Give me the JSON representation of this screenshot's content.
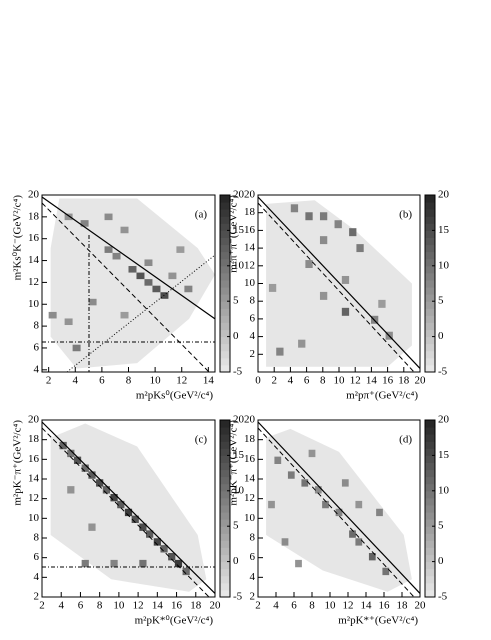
{
  "chart_data": [
    {
      "type": "heatmap",
      "label": "(a)",
      "xlabel": "m²pKs⁰(GeV²/c⁴)",
      "ylabel": "m²Ks⁰K⁻(GeV²/c⁴)",
      "xlim": [
        1.5,
        14.5
      ],
      "ylim": [
        3.8,
        20
      ],
      "xticks": [
        2,
        4,
        6,
        8,
        10,
        12,
        14
      ],
      "yticks": [
        4,
        6,
        8,
        10,
        12,
        14,
        16,
        18,
        20
      ],
      "zlim": [
        -5,
        20
      ],
      "zticks": [
        -5,
        0,
        5,
        10,
        15,
        20
      ],
      "bin": 0.6,
      "cells": [
        [
          3.5,
          18,
          6
        ],
        [
          4.7,
          17.4,
          8
        ],
        [
          6.5,
          18,
          7
        ],
        [
          7.7,
          16.8,
          6
        ],
        [
          6.5,
          15,
          9
        ],
        [
          7.1,
          14.4,
          8
        ],
        [
          8.3,
          13.2,
          12
        ],
        [
          8.9,
          12.6,
          14
        ],
        [
          9.5,
          12,
          11
        ],
        [
          10.1,
          11.4,
          13
        ],
        [
          10.7,
          10.8,
          15
        ],
        [
          9.5,
          13.8,
          7
        ],
        [
          11.3,
          12.6,
          6
        ],
        [
          12.5,
          11.4,
          8
        ],
        [
          3.5,
          8.4,
          6
        ],
        [
          5.3,
          10.2,
          7
        ],
        [
          7.7,
          9,
          5
        ],
        [
          2.3,
          9,
          7
        ],
        [
          4.1,
          6,
          9
        ],
        [
          11.9,
          15,
          5
        ]
      ]
    },
    {
      "type": "heatmap",
      "label": "(b)",
      "xlabel": "m²pπ⁺(GeV²/c⁴)",
      "ylabel": "m²π⁺π⁻(GeV²/c⁴)",
      "xlim": [
        0,
        20
      ],
      "ylim": [
        0,
        20
      ],
      "xticks": [
        0,
        2,
        4,
        6,
        8,
        10,
        12,
        14,
        16,
        18,
        20
      ],
      "yticks": [
        2,
        4,
        6,
        8,
        10,
        12,
        14,
        16,
        18,
        20
      ],
      "zlim": [
        -5,
        20
      ],
      "zticks": [
        -5,
        0,
        5,
        10,
        15,
        20
      ],
      "bin": 0.9,
      "cells": [
        [
          4.5,
          18.5,
          8
        ],
        [
          6.3,
          17.6,
          10
        ],
        [
          8.1,
          17.6,
          9
        ],
        [
          9.9,
          16.7,
          8
        ],
        [
          11.7,
          15.8,
          11
        ],
        [
          12.6,
          14,
          9
        ],
        [
          8.1,
          14.9,
          7
        ],
        [
          6.3,
          12.2,
          7
        ],
        [
          10.8,
          10.4,
          6
        ],
        [
          10.8,
          6.8,
          12
        ],
        [
          14.4,
          5.9,
          8
        ],
        [
          16.2,
          4.1,
          7
        ],
        [
          2.7,
          2.3,
          8
        ],
        [
          5.4,
          3.2,
          6
        ],
        [
          8.1,
          8.6,
          6
        ],
        [
          15.3,
          7.7,
          5
        ],
        [
          1.8,
          9.5,
          5
        ]
      ]
    },
    {
      "type": "heatmap",
      "label": "(c)",
      "xlabel": "m²pK*⁰(GeV²/c⁴)",
      "ylabel": "m²pK⁻π⁺(GeV²/c⁴)",
      "xlim": [
        2,
        20
      ],
      "ylim": [
        2,
        20
      ],
      "xticks": [
        2,
        4,
        6,
        8,
        10,
        12,
        14,
        16,
        18,
        20
      ],
      "yticks": [
        2,
        4,
        6,
        8,
        10,
        12,
        14,
        16,
        18,
        20
      ],
      "zlim": [
        -5,
        20
      ],
      "zticks": [
        -5,
        0,
        5,
        10,
        15,
        20
      ],
      "bin": 0.75,
      "cells": [
        [
          4.2,
          17.4,
          12
        ],
        [
          5,
          16.6,
          10
        ],
        [
          5.7,
          15.9,
          14
        ],
        [
          6.5,
          15.1,
          11
        ],
        [
          7.2,
          14.4,
          13
        ],
        [
          8,
          13.6,
          15
        ],
        [
          8.7,
          12.9,
          12
        ],
        [
          9.5,
          12.1,
          16
        ],
        [
          10.2,
          11.4,
          13
        ],
        [
          11,
          10.6,
          17
        ],
        [
          11.7,
          9.9,
          14
        ],
        [
          12.5,
          9.1,
          15
        ],
        [
          13.2,
          8.4,
          13
        ],
        [
          14,
          7.6,
          16
        ],
        [
          14.7,
          6.9,
          12
        ],
        [
          15.5,
          6.1,
          14
        ],
        [
          16.2,
          5.4,
          17
        ],
        [
          17,
          4.6,
          11
        ],
        [
          6.5,
          5.4,
          9
        ],
        [
          9.5,
          5.4,
          8
        ],
        [
          12.5,
          5.4,
          10
        ],
        [
          7.2,
          9.1,
          6
        ],
        [
          5,
          12.9,
          6
        ]
      ]
    },
    {
      "type": "heatmap",
      "label": "(d)",
      "xlabel": "m²pK*⁺(GeV²/c⁴)",
      "ylabel": "m²pK⁻π⁺(GeV²/c⁴)",
      "xlim": [
        2,
        20
      ],
      "ylim": [
        2,
        20
      ],
      "xticks": [
        2,
        4,
        6,
        8,
        10,
        12,
        14,
        16,
        18,
        20
      ],
      "yticks": [
        2,
        4,
        6,
        8,
        10,
        12,
        14,
        16,
        18,
        20
      ],
      "zlim": [
        -5,
        20
      ],
      "zticks": [
        -5,
        0,
        5,
        10,
        15,
        20
      ],
      "bin": 0.75,
      "cells": [
        [
          4.2,
          15.9,
          8
        ],
        [
          5.7,
          14.4,
          9
        ],
        [
          7.2,
          13.6,
          10
        ],
        [
          8.7,
          12.9,
          7
        ],
        [
          9.5,
          11.4,
          9
        ],
        [
          11,
          10.6,
          8
        ],
        [
          12.5,
          8.4,
          11
        ],
        [
          13.2,
          7.6,
          9
        ],
        [
          14.7,
          6.1,
          12
        ],
        [
          16.2,
          4.6,
          10
        ],
        [
          8,
          16.6,
          6
        ],
        [
          11.7,
          13.6,
          7
        ],
        [
          13.2,
          11.4,
          6
        ],
        [
          5,
          7.6,
          7
        ],
        [
          6.5,
          5.4,
          6
        ],
        [
          15.5,
          10.6,
          8
        ],
        [
          3.5,
          11.4,
          6
        ]
      ]
    }
  ]
}
